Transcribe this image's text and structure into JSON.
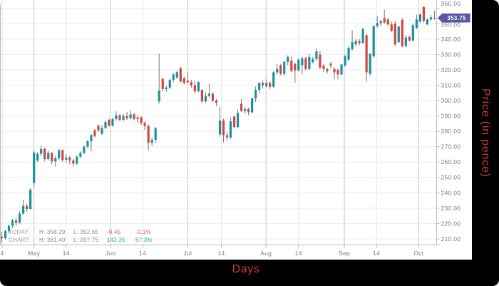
{
  "axis_titles": {
    "x": "Days",
    "y": "Price (in pence)"
  },
  "colors": {
    "up": "#1b919e",
    "down": "#d6453f",
    "wick": "#757575",
    "grid": "#ededed",
    "grid_major": "#c9c9c9",
    "grid_minor": "#e7e7e7",
    "axis_line": "#b8b8b8",
    "tick_label": "#7a7a7a",
    "axis_title": "#c23b33",
    "tag_bg": "#5a56a3",
    "tag_text": "#ffffff",
    "legend_label": "#9e9e9e",
    "legend_value": "#8c8c8c",
    "legend_neg": "#e05555",
    "legend_pos": "#2fa9b8"
  },
  "legend": {
    "rows": [
      {
        "label": "TODAY:",
        "high": "H: 358.29",
        "low": "L: 352.65",
        "change": "-0.45",
        "pct": "-0.1%",
        "direction": "neg"
      },
      {
        "label": "CHART:",
        "high": "H: 361.40",
        "low": "L: 207.75",
        "change": "142.35",
        "pct": "67.3%",
        "direction": "pos"
      }
    ]
  },
  "chart_data": {
    "type": "candlestick",
    "title": "",
    "xlabel": "Days",
    "ylabel": "Price (in pence)",
    "last_price": 353.75,
    "last_price_label": "353.75",
    "today": {
      "high": 358.29,
      "low": 352.65,
      "change": -0.45,
      "change_pct": "-0.1%"
    },
    "chart_summary": {
      "high": 361.4,
      "low": 207.75,
      "change": 142.35,
      "change_pct": "67.3%"
    },
    "ylim": [
      206,
      365
    ],
    "grid": true,
    "y_ticks": [
      {
        "text": "360.00",
        "value": 360,
        "dy": -6.5
      },
      {
        "text": "350.00",
        "value": 350,
        "dy": 1.5
      },
      {
        "text": "340.00",
        "value": 340
      },
      {
        "text": "330.00",
        "value": 330
      },
      {
        "text": "320.00",
        "value": 320
      },
      {
        "text": "310.00",
        "value": 310
      },
      {
        "text": "300.00",
        "value": 300
      },
      {
        "text": "290.00",
        "value": 290
      },
      {
        "text": "280.00",
        "value": 280
      },
      {
        "text": "270.00",
        "value": 270
      },
      {
        "text": "260.00",
        "value": 260
      },
      {
        "text": "250.00",
        "value": 250
      },
      {
        "text": "240.00",
        "value": 240
      },
      {
        "text": "230.00",
        "value": 230
      },
      {
        "text": "220.00",
        "value": 220
      },
      {
        "text": "210.00",
        "value": 210
      }
    ],
    "x_ticks": [
      {
        "label": "4",
        "i": 0.1,
        "major": false
      },
      {
        "label": "May",
        "i": 9,
        "major": true
      },
      {
        "label": "14",
        "i": 18,
        "major": false
      },
      {
        "label": "Jun",
        "i": 30.4,
        "major": true
      },
      {
        "label": "14",
        "i": 39.4,
        "major": false
      },
      {
        "label": "Jul",
        "i": 52,
        "major": true
      },
      {
        "label": "14",
        "i": 61.4,
        "major": false
      },
      {
        "label": "Aug",
        "i": 73.9,
        "major": true
      },
      {
        "label": "14",
        "i": 83,
        "major": false
      },
      {
        "label": "Sep",
        "i": 95.8,
        "major": true
      },
      {
        "label": "14",
        "i": 104.8,
        "major": false
      },
      {
        "label": "Oct",
        "i": 116.6,
        "major": true
      }
    ],
    "candles": [
      [
        211.4,
        214.5,
        207.75,
        210.5
      ],
      [
        210.5,
        216,
        209.5,
        215
      ],
      [
        215,
        219.5,
        213.5,
        218.5
      ],
      [
        218.5,
        223,
        217,
        222
      ],
      [
        222,
        224,
        218.5,
        220.5
      ],
      [
        220.5,
        228,
        220,
        226.5
      ],
      [
        226.5,
        235.5,
        226,
        231.5
      ],
      [
        231.5,
        233,
        227.5,
        229.5
      ],
      [
        229.5,
        243,
        229,
        242
      ],
      [
        246.5,
        267.7,
        243.4,
        266.2
      ],
      [
        261,
        266.5,
        260,
        265.4
      ],
      [
        265.4,
        270.8,
        264,
        268.5
      ],
      [
        268.5,
        269.5,
        260.5,
        262
      ],
      [
        262,
        267.5,
        261,
        266
      ],
      [
        266,
        266.5,
        258.5,
        260.5
      ],
      [
        260.5,
        264,
        257.1,
        262.5
      ],
      [
        262.5,
        268.5,
        261.5,
        267.7
      ],
      [
        267.7,
        268.3,
        260,
        261.5
      ],
      [
        261.5,
        265,
        259.5,
        263
      ],
      [
        263,
        264,
        258.5,
        261
      ],
      [
        261,
        262,
        257.1,
        259
      ],
      [
        259,
        264.5,
        258,
        263.5
      ],
      [
        263.5,
        267,
        262.5,
        266
      ],
      [
        266,
        271,
        265,
        270
      ],
      [
        270,
        274.5,
        269,
        273.5
      ],
      [
        273.5,
        278.5,
        267,
        277.5
      ],
      [
        280.7,
        281.5,
        276,
        276.9
      ],
      [
        283.7,
        284.5,
        279.5,
        280.7
      ],
      [
        278.4,
        284,
        277.5,
        282.2
      ],
      [
        282.2,
        287,
        281.5,
        286
      ],
      [
        287.5,
        288.5,
        283,
        283.7
      ],
      [
        283.7,
        289,
        283,
        288
      ],
      [
        288,
        293,
        287,
        290.5
      ],
      [
        290.5,
        291.5,
        286.5,
        287.5
      ],
      [
        287.5,
        291.5,
        286.5,
        290
      ],
      [
        290,
        292.5,
        287.5,
        288.5
      ],
      [
        288.5,
        293.5,
        288,
        291
      ],
      [
        291,
        292,
        287,
        288
      ],
      [
        288,
        290.5,
        285.5,
        289
      ],
      [
        289,
        290,
        284,
        285.5
      ],
      [
        285.5,
        286.5,
        281,
        283.5
      ],
      [
        283.5,
        284.5,
        267.6,
        272.5
      ],
      [
        272.5,
        276,
        270.5,
        274.5
      ],
      [
        274.5,
        283,
        272.5,
        282
      ],
      [
        299.5,
        330.6,
        298,
        306.5
      ],
      [
        314,
        315,
        306,
        307.5
      ],
      [
        307.5,
        309.5,
        305.5,
        308.5
      ],
      [
        308.5,
        314.5,
        307.5,
        313.5
      ],
      [
        313.5,
        318,
        312,
        317
      ],
      [
        315,
        319.5,
        314,
        318.5
      ],
      [
        321,
        322,
        311.5,
        312.5
      ],
      [
        314.5,
        315.5,
        310.5,
        311.5
      ],
      [
        313,
        318.5,
        311,
        312
      ],
      [
        312,
        313.5,
        308.5,
        310
      ],
      [
        310,
        313,
        304.5,
        306
      ],
      [
        306,
        312.5,
        305.5,
        312
      ],
      [
        307,
        307.5,
        298.5,
        299.5
      ],
      [
        299.5,
        305.5,
        298.5,
        303
      ],
      [
        303,
        311,
        302,
        304.5
      ],
      [
        304.5,
        305.5,
        299,
        300
      ],
      [
        300,
        301,
        296.5,
        298.6
      ],
      [
        278,
        296,
        276.5,
        287
      ],
      [
        287,
        288,
        272.9,
        277.5
      ],
      [
        277.5,
        279.5,
        274,
        276
      ],
      [
        276,
        289,
        275,
        286.5
      ],
      [
        289.6,
        290.5,
        282,
        282.8
      ],
      [
        282.8,
        294.2,
        282,
        292
      ],
      [
        297.9,
        301,
        292.5,
        293.3
      ],
      [
        293.3,
        296,
        291.5,
        294.5
      ],
      [
        294.5,
        295.5,
        290.5,
        292.4
      ],
      [
        292.4,
        302,
        291.5,
        301.5
      ],
      [
        301.5,
        309.2,
        299,
        307
      ],
      [
        307,
        312,
        304.7,
        311.5
      ],
      [
        311.5,
        313,
        308,
        310
      ],
      [
        309.3,
        313.8,
        308.5,
        311.5
      ],
      [
        311.5,
        312.5,
        307.5,
        309
      ],
      [
        309,
        319.4,
        308.5,
        318.4
      ],
      [
        318.4,
        323.8,
        317,
        320.6
      ],
      [
        322.9,
        323.9,
        316.5,
        317.4
      ],
      [
        317.4,
        326.2,
        316,
        325.2
      ],
      [
        325.2,
        329.4,
        322.9,
        328.4
      ],
      [
        326,
        328.5,
        318.5,
        319.3
      ],
      [
        323.8,
        324.8,
        311.5,
        319.7
      ],
      [
        319.7,
        327.6,
        319,
        326.6
      ],
      [
        323,
        328.5,
        317,
        327.5
      ],
      [
        327.5,
        328.4,
        319.5,
        320.6
      ],
      [
        320.6,
        330.7,
        320,
        328.4
      ],
      [
        325,
        328.5,
        324,
        327
      ],
      [
        327,
        334,
        326,
        332
      ],
      [
        330,
        332.5,
        320.5,
        321.5
      ],
      [
        322.9,
        323.9,
        318.5,
        320.6
      ],
      [
        319,
        321.5,
        317.5,
        320.5
      ],
      [
        324,
        325.2,
        321,
        322.9
      ],
      [
        320.6,
        321.6,
        313.8,
        318.4
      ],
      [
        320,
        321,
        314,
        317
      ],
      [
        317,
        323.8,
        316.5,
        323.5
      ],
      [
        322.9,
        329.8,
        322,
        328.8
      ],
      [
        326.6,
        335.3,
        326,
        334.3
      ],
      [
        333.4,
        345.7,
        332.5,
        338
      ],
      [
        336.6,
        339.8,
        335.5,
        338.8
      ],
      [
        338.8,
        340,
        336,
        337.5
      ],
      [
        337.5,
        347.6,
        337,
        346.6
      ],
      [
        342.5,
        343.5,
        312.4,
        318.4
      ],
      [
        317.4,
        330.7,
        316,
        330.5
      ],
      [
        328.8,
        348.8,
        328,
        348.5
      ],
      [
        348.5,
        355,
        347.5,
        350.5
      ],
      [
        350.5,
        352.5,
        348.5,
        351.8
      ],
      [
        353.7,
        359.2,
        350,
        350.8
      ],
      [
        352.8,
        353.8,
        348.8,
        349.6
      ],
      [
        349.6,
        351.4,
        344.5,
        345.5
      ],
      [
        350,
        351.9,
        335.5,
        336.5
      ],
      [
        338,
        348.6,
        337.5,
        348.2
      ],
      [
        352.5,
        353.7,
        334.5,
        335.5
      ],
      [
        335.5,
        342.5,
        334.6,
        341
      ],
      [
        341.4,
        342.4,
        338.5,
        339.1
      ],
      [
        339.1,
        350.1,
        338.5,
        349.1
      ],
      [
        347.3,
        356,
        346.5,
        352.8
      ],
      [
        351.4,
        357,
        350.5,
        356
      ],
      [
        360.8,
        361.4,
        350.8,
        351.8
      ],
      [
        349.6,
        353.6,
        349,
        352.8
      ],
      [
        352.8,
        355.7,
        351.8,
        354.2
      ],
      [
        353.4,
        358.29,
        352.65,
        353.75
      ]
    ]
  }
}
